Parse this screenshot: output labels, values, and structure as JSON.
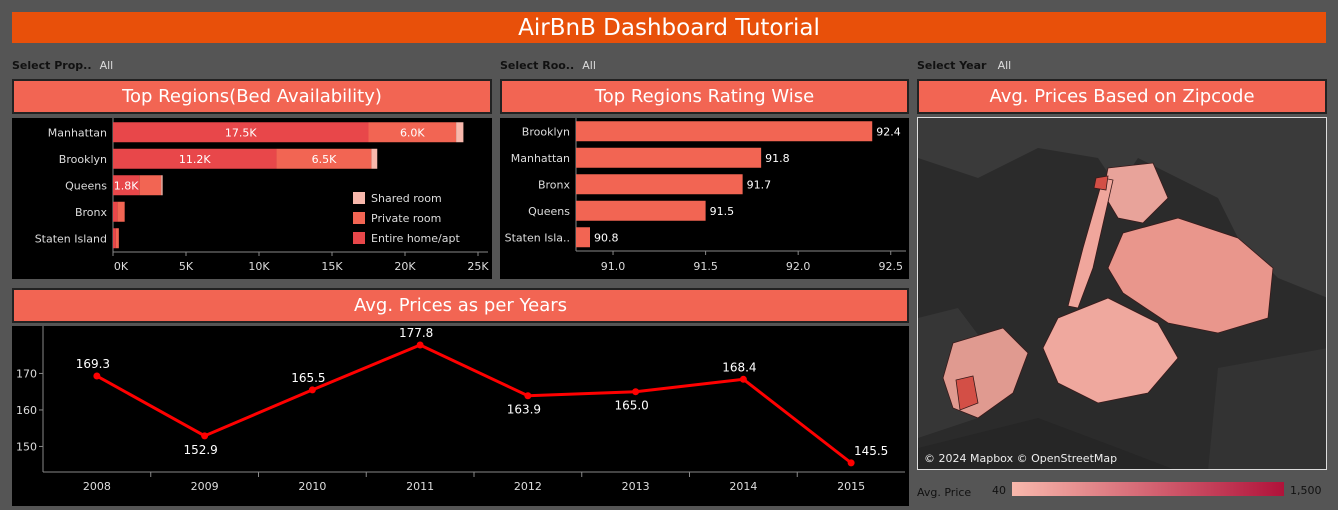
{
  "header": {
    "title": "AirBnB Dashboard Tutorial"
  },
  "filters": [
    {
      "label": "Select Prop..",
      "value": "All"
    },
    {
      "label": "Select Roo..",
      "value": "All"
    },
    {
      "label": "Select Year",
      "value": "All"
    }
  ],
  "panels": {
    "beds_title": "Top Regions(Bed Availability)",
    "rating_title": "Top Regions Rating Wise",
    "map_title": "Avg. Prices Based on Zipcode",
    "years_title": "Avg. Prices as per Years"
  },
  "map": {
    "attribution": "© 2024 Mapbox © OpenStreetMap",
    "legend_label": "Avg. Price",
    "legend_min": "40",
    "legend_max": "1,500",
    "legend_color_min": "#f8b8ac",
    "legend_color_max": "#b0123a"
  },
  "colors": {
    "entire": "#e8474a",
    "private": "#f26553",
    "shared": "#f8b8ac",
    "rating_bar": "#f26553",
    "line": "#ff0000",
    "header": "#e8500a"
  },
  "chart_data": [
    {
      "type": "bar",
      "orientation": "horizontal",
      "stacked": true,
      "title": "Top Regions(Bed Availability)",
      "categories": [
        "Manhattan",
        "Brooklyn",
        "Queens",
        "Bronx",
        "Staten Island"
      ],
      "series": [
        {
          "name": "Entire home/apt",
          "values": [
            17500,
            11200,
            1800,
            300,
            200
          ],
          "labels": [
            "17.5K",
            "11.2K",
            "1.8K",
            "",
            ""
          ]
        },
        {
          "name": "Private room",
          "values": [
            6000,
            6500,
            1500,
            500,
            200
          ],
          "labels": [
            "6.0K",
            "6.5K",
            "",
            "",
            ""
          ]
        },
        {
          "name": "Shared room",
          "values": [
            500,
            400,
            100,
            0,
            0
          ],
          "labels": [
            "",
            "",
            "",
            "",
            ""
          ]
        }
      ],
      "xticks": [
        "0K",
        "5K",
        "10K",
        "15K",
        "20K",
        "25K"
      ],
      "xlim": [
        0,
        25000
      ],
      "legend_position": "bottom-right"
    },
    {
      "type": "bar",
      "orientation": "horizontal",
      "title": "Top Regions Rating Wise",
      "categories": [
        "Brooklyn",
        "Manhattan",
        "Bronx",
        "Queens",
        "Staten Isla.."
      ],
      "values": [
        92.4,
        91.8,
        91.7,
        91.5,
        90.8
      ],
      "labels": [
        "92.4",
        "91.8",
        "91.7",
        "91.5",
        "90.8"
      ],
      "xticks": [
        "91.0",
        "91.5",
        "92.0",
        "92.5"
      ],
      "xlim": [
        90.8,
        92.55
      ]
    },
    {
      "type": "line",
      "title": "Avg. Prices as per Years",
      "x": [
        "2008",
        "2009",
        "2010",
        "2011",
        "2012",
        "2013",
        "2014",
        "2015"
      ],
      "y": [
        169.3,
        152.9,
        165.5,
        177.8,
        163.9,
        165.0,
        168.4,
        145.5
      ],
      "labels": [
        "169.3",
        "152.9",
        "165.5",
        "177.8",
        "163.9",
        "165.0",
        "168.4",
        "145.5"
      ],
      "yticks": [
        "150",
        "160",
        "170"
      ],
      "ylim": [
        143,
        183
      ]
    }
  ]
}
